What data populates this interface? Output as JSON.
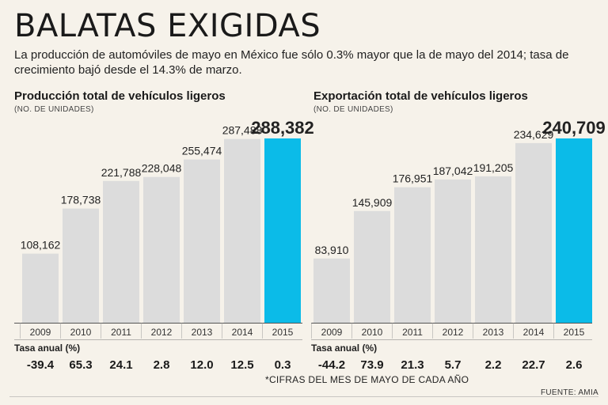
{
  "headline": "BALATAS EXIGIDAS",
  "subtitle": "La producción de automóviles de mayo en México fue sólo 0.3% mayor que la de mayo del 2014; tasa de crecimiento bajó desde el 14.3% de marzo.",
  "rate_label": "Tasa anual (%)",
  "footnote": "*CIFRAS DEL MES DE MAYO DE CADA AÑO",
  "source": "FUENTE: AMIA",
  "colors": {
    "bar": "#dcdcdc",
    "highlight": "#0bbbe8",
    "background": "#f6f2ea"
  },
  "chart_data": [
    {
      "type": "bar",
      "title": "Producción total de vehículos ligeros",
      "subtitle": "(NO. DE UNIDADES)",
      "categories": [
        "2009",
        "2010",
        "2011",
        "2012",
        "2013",
        "2014",
        "2015"
      ],
      "values": [
        108162,
        178738,
        221788,
        228048,
        255474,
        287488,
        288382
      ],
      "value_labels": [
        "108,162",
        "178,738",
        "221,788",
        "228,048",
        "255,474",
        "287,488",
        "288,382"
      ],
      "tasa_anual": [
        "-39.4",
        "65.3",
        "24.1",
        "2.8",
        "12.0",
        "12.5",
        "0.3"
      ],
      "highlight_index": 6,
      "ylim": [
        0,
        300000
      ]
    },
    {
      "type": "bar",
      "title": "Exportación total de vehículos ligeros",
      "subtitle": "(NO. DE UNIDADES)",
      "categories": [
        "2009",
        "2010",
        "2011",
        "2012",
        "2013",
        "2014",
        "2015"
      ],
      "values": [
        83910,
        145909,
        176951,
        187042,
        191205,
        234629,
        240709
      ],
      "value_labels": [
        "83,910",
        "145,909",
        "176,951",
        "187,042",
        "191,205",
        "234,629",
        "240,709"
      ],
      "tasa_anual": [
        "-44.2",
        "73.9",
        "21.3",
        "5.7",
        "2.2",
        "22.7",
        "2.6"
      ],
      "highlight_index": 6,
      "ylim": [
        0,
        250000
      ]
    }
  ]
}
